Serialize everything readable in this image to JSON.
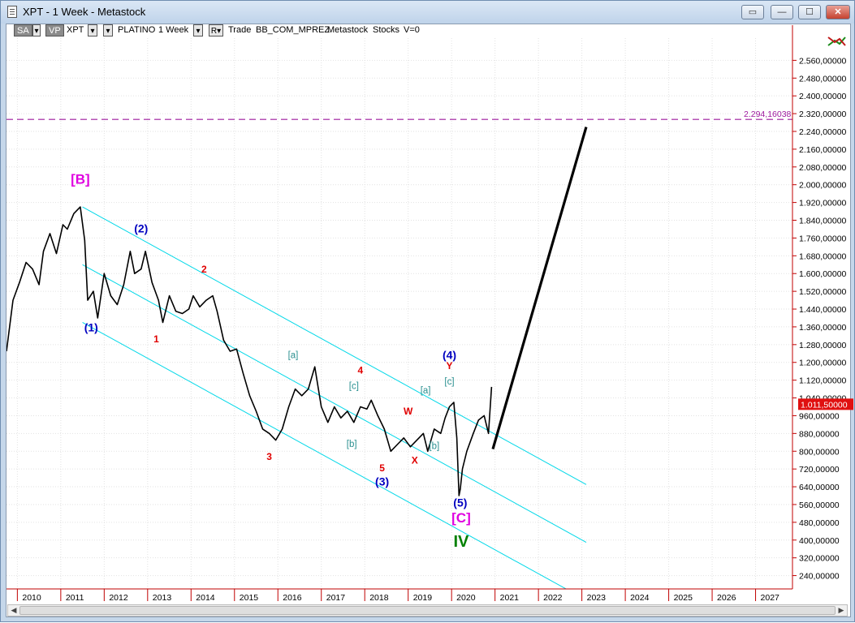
{
  "window": {
    "title": "XPT - 1 Week - Metastock"
  },
  "toolbar": {
    "items": [
      "SA",
      "VP",
      "XPT",
      "PLATINO",
      "1 Week",
      "R",
      "Trade",
      "BB_COM_MPREZ",
      "Metastock",
      "Stocks",
      "V=0"
    ]
  },
  "colors": {
    "price_line": "#000000",
    "channel": "#00d8e8",
    "wave_primary": "#e000e0",
    "wave_intermediate": "#0000c0",
    "wave_minor": "#e00000",
    "wave_minute": "#2a9090",
    "wave_cycle": "#008000",
    "target_line": "#9e1a9e",
    "axis": "#c00000",
    "last_price_box": "#e01010"
  },
  "chart_data": {
    "type": "line",
    "title": "",
    "xlabel": "",
    "ylabel": "",
    "x_ticks": [
      "2010",
      "2011",
      "2012",
      "2013",
      "2014",
      "2015",
      "2016",
      "2017",
      "2018",
      "2019",
      "2020",
      "2021",
      "2022",
      "2023",
      "2024",
      "2025",
      "2026",
      "2027"
    ],
    "y_ticks": [
      "2.560,00000",
      "2.480,00000",
      "2.400,00000",
      "2.320,00000",
      "2.240,00000",
      "2.160,00000",
      "2.080,00000",
      "2.000,00000",
      "1.920,00000",
      "1.840,00000",
      "1.760,00000",
      "1.680,00000",
      "1.600,00000",
      "1.520,00000",
      "1.440,00000",
      "1.360,00000",
      "1.280,00000",
      "1.200,00000",
      "1.120,00000",
      "1.040,00000",
      "960,00000",
      "880,00000",
      "800,00000",
      "720,00000",
      "640,00000",
      "560,00000",
      "480,00000",
      "400,00000",
      "320,00000",
      "240,00000"
    ],
    "ylim": [
      180,
      2660
    ],
    "xlim": [
      2009.75,
      2027.85
    ],
    "grid": true,
    "series": [
      {
        "x": [
          2009.75,
          2009.9,
          2010.05,
          2010.2,
          2010.35,
          2010.5,
          2010.6,
          2010.75,
          2010.9,
          2011.05,
          2011.15,
          2011.3,
          2011.45,
          2011.55,
          2011.62,
          2011.75,
          2011.85,
          2012.0,
          2012.15,
          2012.3,
          2012.45,
          2012.6,
          2012.7,
          2012.85,
          2012.95,
          2013.1,
          2013.25,
          2013.35,
          2013.5,
          2013.65,
          2013.8,
          2013.95,
          2014.05,
          2014.2,
          2014.35,
          2014.5,
          2014.6,
          2014.75,
          2014.9,
          2015.05,
          2015.2,
          2015.35,
          2015.5,
          2015.65,
          2015.8,
          2015.95,
          2016.1,
          2016.25,
          2016.4,
          2016.55,
          2016.7,
          2016.85,
          2017.0,
          2017.15,
          2017.3,
          2017.45,
          2017.6,
          2017.75,
          2017.9,
          2018.05,
          2018.15,
          2018.3,
          2018.45,
          2018.6,
          2018.75,
          2018.9,
          2019.05,
          2019.2,
          2019.35,
          2019.45,
          2019.6,
          2019.75,
          2019.85,
          2019.95,
          2020.05,
          2020.12,
          2020.17,
          2020.2,
          2020.25,
          2020.35,
          2020.5,
          2020.62,
          2020.75,
          2020.85,
          2020.92
        ],
        "values": [
          1250,
          1480,
          1560,
          1650,
          1620,
          1550,
          1700,
          1780,
          1690,
          1820,
          1800,
          1870,
          1900,
          1750,
          1480,
          1520,
          1400,
          1600,
          1500,
          1460,
          1550,
          1700,
          1600,
          1620,
          1700,
          1560,
          1480,
          1380,
          1500,
          1430,
          1420,
          1440,
          1500,
          1450,
          1480,
          1500,
          1430,
          1300,
          1250,
          1260,
          1150,
          1050,
          980,
          900,
          880,
          850,
          900,
          1000,
          1080,
          1050,
          1080,
          1180,
          1000,
          930,
          1000,
          950,
          980,
          930,
          1000,
          990,
          1030,
          960,
          900,
          800,
          830,
          860,
          820,
          850,
          880,
          800,
          900,
          880,
          950,
          1000,
          1020,
          860,
          600,
          630,
          720,
          800,
          880,
          940,
          960,
          880,
          1090
        ]
      }
    ],
    "projection": {
      "x": [
        2020.95,
        2023.1
      ],
      "values": [
        810,
        2260
      ]
    },
    "channels": [
      {
        "x": [
          2011.5,
          2023.1
        ],
        "values": [
          1900,
          650
        ]
      },
      {
        "x": [
          2011.5,
          2023.1
        ],
        "values": [
          1640,
          390
        ]
      },
      {
        "x": [
          2011.5,
          2023.1
        ],
        "values": [
          1380,
          130
        ]
      }
    ],
    "target_level": 2294.16038,
    "target_label": "2.294,16038",
    "last_price": 1011.5,
    "last_price_label": "1.011,50000",
    "annotations": [
      {
        "text": "[B]",
        "x": 2011.45,
        "y": 2005,
        "degree": "primary"
      },
      {
        "text": "[C]",
        "x": 2020.22,
        "y": 480,
        "degree": "primary"
      },
      {
        "text": "IV",
        "x": 2020.22,
        "y": 370,
        "degree": "cycle"
      },
      {
        "text": "(1)",
        "x": 2011.7,
        "y": 1340,
        "degree": "intermediate"
      },
      {
        "text": "(2)",
        "x": 2012.85,
        "y": 1785,
        "degree": "intermediate"
      },
      {
        "text": "(3)",
        "x": 2018.4,
        "y": 645,
        "degree": "intermediate"
      },
      {
        "text": "(4)",
        "x": 2019.95,
        "y": 1215,
        "degree": "intermediate"
      },
      {
        "text": "(5)",
        "x": 2020.2,
        "y": 550,
        "degree": "intermediate"
      },
      {
        "text": "1",
        "x": 2013.2,
        "y": 1290,
        "degree": "minor"
      },
      {
        "text": "2",
        "x": 2014.3,
        "y": 1605,
        "degree": "minor"
      },
      {
        "text": "3",
        "x": 2015.8,
        "y": 760,
        "degree": "minor"
      },
      {
        "text": "4",
        "x": 2017.9,
        "y": 1150,
        "degree": "minor"
      },
      {
        "text": "5",
        "x": 2018.4,
        "y": 710,
        "degree": "minor"
      },
      {
        "text": "W",
        "x": 2019.0,
        "y": 965,
        "degree": "minor"
      },
      {
        "text": "X",
        "x": 2019.15,
        "y": 745,
        "degree": "minor"
      },
      {
        "text": "Y",
        "x": 2019.95,
        "y": 1170,
        "degree": "minor"
      },
      {
        "text": "[a]",
        "x": 2016.35,
        "y": 1220,
        "degree": "minute"
      },
      {
        "text": "[b]",
        "x": 2017.7,
        "y": 820,
        "degree": "minute"
      },
      {
        "text": "[c]",
        "x": 2017.75,
        "y": 1080,
        "degree": "minute"
      },
      {
        "text": "[a]",
        "x": 2019.4,
        "y": 1060,
        "degree": "minute"
      },
      {
        "text": "[b]",
        "x": 2019.6,
        "y": 810,
        "degree": "minute"
      },
      {
        "text": "[c]",
        "x": 2019.95,
        "y": 1100,
        "degree": "minute"
      }
    ]
  }
}
